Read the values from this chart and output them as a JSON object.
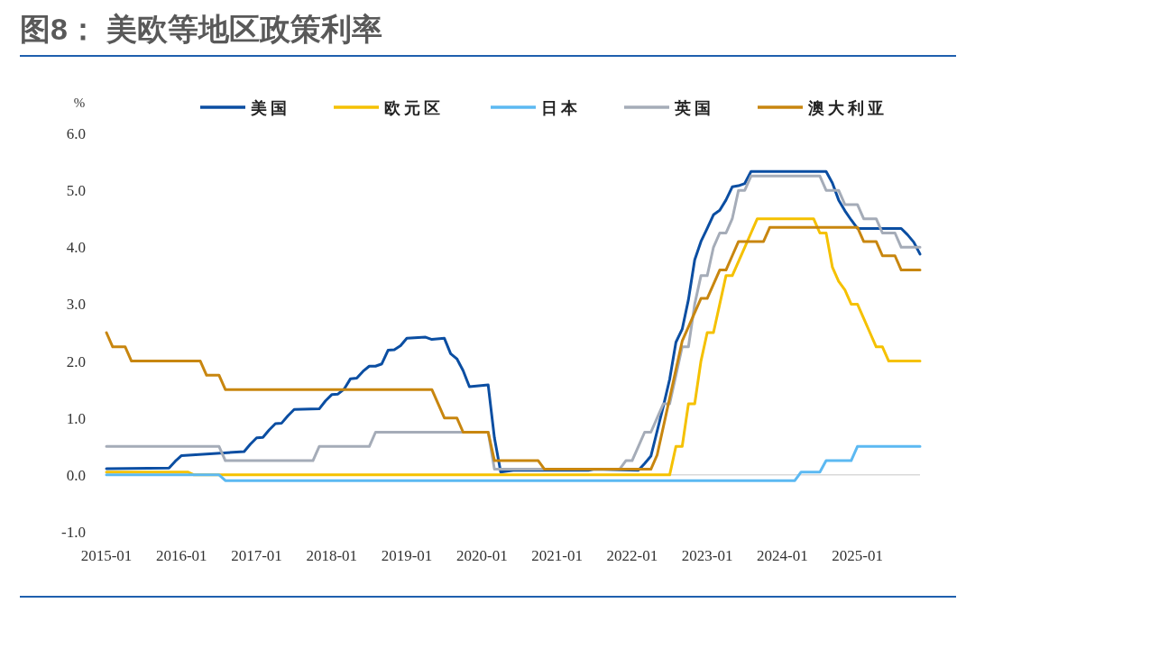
{
  "chart_data": {
    "type": "line",
    "title": "图8： 美欧等地区政策利率",
    "ylabel": "%",
    "xlim": [
      "2015-01",
      "2025-11"
    ],
    "xticks": [
      "2015-01",
      "2016-01",
      "2017-01",
      "2018-01",
      "2019-01",
      "2020-01",
      "2021-01",
      "2022-01",
      "2023-01",
      "2024-01",
      "2025-01"
    ],
    "ylim": [
      -1,
      6
    ],
    "yticks": [
      {
        "value": -1,
        "label": "-1.0"
      },
      {
        "value": 0,
        "label": "0.0"
      },
      {
        "value": 1,
        "label": "1.0"
      },
      {
        "value": 2,
        "label": "2.0"
      },
      {
        "value": 3,
        "label": "3.0"
      },
      {
        "value": 4,
        "label": "4.0"
      },
      {
        "value": 5,
        "label": "5.0"
      },
      {
        "value": 6,
        "label": "6.0"
      }
    ],
    "grid": false,
    "legend": "top",
    "marker": "none",
    "line_style": "solid",
    "ref_lines": [
      {
        "axis": "y",
        "value": 0,
        "color": "#d9d9d9"
      }
    ],
    "series": [
      {
        "name": "美国",
        "color": "#0b4ea2",
        "x": [
          "2015-01",
          "2015-11",
          "2015-12",
          "2016-01",
          "2016-11",
          "2016-12",
          "2017-01",
          "2017-02",
          "2017-03",
          "2017-04",
          "2017-05",
          "2017-06",
          "2017-07",
          "2017-11",
          "2017-12",
          "2018-01",
          "2018-02",
          "2018-03",
          "2018-04",
          "2018-05",
          "2018-06",
          "2018-07",
          "2018-08",
          "2018-09",
          "2018-10",
          "2018-11",
          "2018-12",
          "2019-01",
          "2019-04",
          "2019-05",
          "2019-07",
          "2019-08",
          "2019-09",
          "2019-10",
          "2019-11",
          "2020-02",
          "2020-03",
          "2020-04",
          "2020-06",
          "2021-06",
          "2021-07",
          "2022-02",
          "2022-03",
          "2022-04",
          "2022-05",
          "2022-06",
          "2022-07",
          "2022-08",
          "2022-09",
          "2022-10",
          "2022-11",
          "2022-12",
          "2023-01",
          "2023-02",
          "2023-03",
          "2023-04",
          "2023-05",
          "2023-06",
          "2023-07",
          "2023-08",
          "2024-08",
          "2024-09",
          "2024-10",
          "2024-11",
          "2024-12",
          "2025-01",
          "2025-08",
          "2025-09",
          "2025-10",
          "2025-11"
        ],
        "values": [
          0.11,
          0.12,
          0.24,
          0.34,
          0.41,
          0.54,
          0.65,
          0.66,
          0.79,
          0.9,
          0.91,
          1.04,
          1.15,
          1.16,
          1.3,
          1.41,
          1.42,
          1.51,
          1.69,
          1.7,
          1.82,
          1.91,
          1.91,
          1.95,
          2.19,
          2.2,
          2.27,
          2.4,
          2.42,
          2.38,
          2.4,
          2.13,
          2.04,
          1.83,
          1.55,
          1.58,
          0.65,
          0.05,
          0.08,
          0.08,
          0.1,
          0.08,
          0.2,
          0.33,
          0.77,
          1.21,
          1.68,
          2.33,
          2.56,
          3.08,
          3.78,
          4.1,
          4.33,
          4.57,
          4.65,
          4.83,
          5.06,
          5.08,
          5.12,
          5.33,
          5.33,
          5.13,
          4.83,
          4.64,
          4.48,
          4.33,
          4.33,
          4.22,
          4.09,
          3.88
        ]
      },
      {
        "name": "欧元区",
        "color": "#f5c100",
        "x": [
          "2015-01",
          "2016-02",
          "2016-03",
          "2022-07",
          "2022-08",
          "2022-09",
          "2022-10",
          "2022-11",
          "2022-12",
          "2023-01",
          "2023-02",
          "2023-03",
          "2023-04",
          "2023-05",
          "2023-06",
          "2023-07",
          "2023-08",
          "2023-09",
          "2024-06",
          "2024-07",
          "2024-08",
          "2024-09",
          "2024-10",
          "2024-11",
          "2024-12",
          "2025-01",
          "2025-02",
          "2025-03",
          "2025-04",
          "2025-05",
          "2025-06",
          "2025-11"
        ],
        "values": [
          0.05,
          0.05,
          0.0,
          0.0,
          0.5,
          0.5,
          1.25,
          1.25,
          2.0,
          2.5,
          2.5,
          3.0,
          3.5,
          3.5,
          3.75,
          4.0,
          4.25,
          4.5,
          4.5,
          4.25,
          4.25,
          3.65,
          3.4,
          3.25,
          3.0,
          3.0,
          2.75,
          2.5,
          2.25,
          2.25,
          2.0,
          2.0
        ]
      },
      {
        "name": "日本",
        "color": "#5cb9f2",
        "x": [
          "2015-01",
          "2016-07",
          "2016-08",
          "2024-03",
          "2024-04",
          "2024-07",
          "2024-08",
          "2024-12",
          "2025-01",
          "2025-11"
        ],
        "values": [
          0.0,
          0.0,
          -0.1,
          -0.1,
          0.05,
          0.05,
          0.25,
          0.25,
          0.5,
          0.5
        ]
      },
      {
        "name": "英国",
        "color": "#a5acb8",
        "x": [
          "2015-01",
          "2016-07",
          "2016-08",
          "2017-10",
          "2017-11",
          "2018-07",
          "2018-08",
          "2020-02",
          "2020-03",
          "2021-11",
          "2021-12",
          "2022-01",
          "2022-02",
          "2022-03",
          "2022-04",
          "2022-05",
          "2022-06",
          "2022-07",
          "2022-08",
          "2022-09",
          "2022-10",
          "2022-11",
          "2022-12",
          "2023-01",
          "2023-02",
          "2023-03",
          "2023-04",
          "2023-05",
          "2023-06",
          "2023-07",
          "2023-08",
          "2024-07",
          "2024-08",
          "2024-10",
          "2024-11",
          "2025-01",
          "2025-02",
          "2025-04",
          "2025-05",
          "2025-07",
          "2025-08",
          "2025-11"
        ],
        "values": [
          0.5,
          0.5,
          0.25,
          0.25,
          0.5,
          0.5,
          0.75,
          0.75,
          0.1,
          0.1,
          0.25,
          0.25,
          0.5,
          0.75,
          0.75,
          1.0,
          1.25,
          1.25,
          1.75,
          2.25,
          2.25,
          3.0,
          3.5,
          3.5,
          4.0,
          4.25,
          4.25,
          4.5,
          5.0,
          5.0,
          5.25,
          5.25,
          5.0,
          5.0,
          4.75,
          4.75,
          4.5,
          4.5,
          4.25,
          4.25,
          4.0,
          4.0
        ]
      },
      {
        "name": "澳大利亚",
        "color": "#c8860f",
        "x": [
          "2015-01",
          "2015-02",
          "2015-04",
          "2015-05",
          "2016-04",
          "2016-05",
          "2016-07",
          "2016-08",
          "2019-05",
          "2019-06",
          "2019-07",
          "2019-09",
          "2019-10",
          "2020-02",
          "2020-03",
          "2020-10",
          "2020-11",
          "2022-04",
          "2022-05",
          "2022-06",
          "2022-07",
          "2022-08",
          "2022-09",
          "2022-10",
          "2022-11",
          "2022-12",
          "2023-01",
          "2023-02",
          "2023-03",
          "2023-04",
          "2023-05",
          "2023-06",
          "2023-10",
          "2023-11",
          "2025-01",
          "2025-02",
          "2025-04",
          "2025-05",
          "2025-07",
          "2025-08",
          "2025-11"
        ],
        "values": [
          2.5,
          2.25,
          2.25,
          2.0,
          2.0,
          1.75,
          1.75,
          1.5,
          1.5,
          1.25,
          1.0,
          1.0,
          0.75,
          0.75,
          0.25,
          0.25,
          0.1,
          0.1,
          0.35,
          0.85,
          1.35,
          1.85,
          2.35,
          2.6,
          2.85,
          3.1,
          3.1,
          3.35,
          3.6,
          3.6,
          3.85,
          4.1,
          4.1,
          4.35,
          4.35,
          4.1,
          4.1,
          3.85,
          3.85,
          3.6,
          3.6
        ]
      }
    ]
  }
}
